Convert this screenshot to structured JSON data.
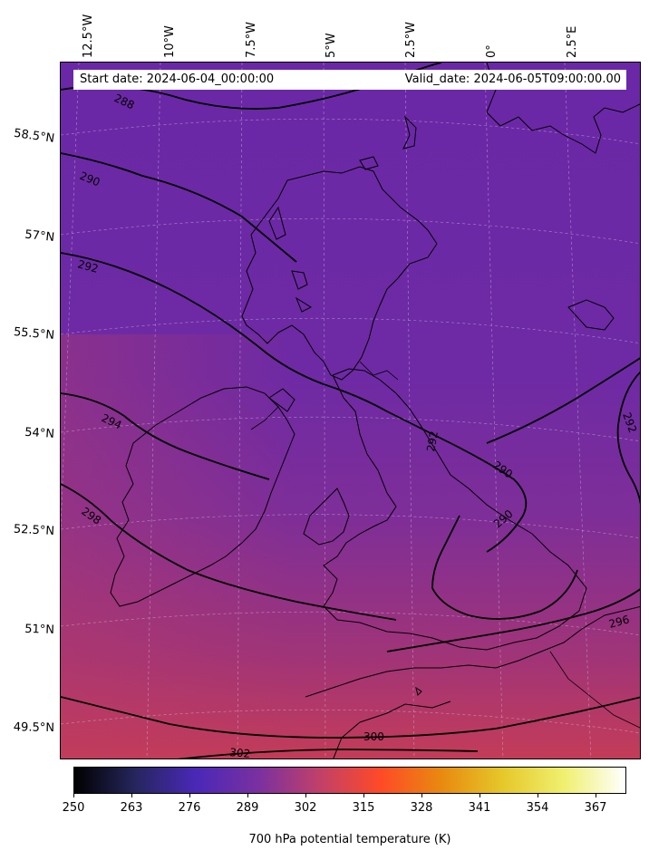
{
  "header": {
    "start_date": "Start date: 2024-06-04_00:00:00",
    "valid_date": "Valid_date: 2024-06-05T09:00:00.00"
  },
  "axes": {
    "longitude_labels": [
      "12.5°W",
      "10°W",
      "7.5°W",
      "5°W",
      "2.5°W",
      "0°",
      "2.5°E"
    ],
    "latitude_labels": [
      "58.5°N",
      "57°N",
      "55.5°N",
      "54°N",
      "52.5°N",
      "51°N",
      "49.5°N"
    ]
  },
  "contours": {
    "labels": [
      "288",
      "290",
      "292",
      "294",
      "298",
      "292",
      "290",
      "290",
      "292",
      "296",
      "300",
      "302"
    ]
  },
  "colorbar": {
    "title": "700 hPa potential temperature (K)",
    "ticks": [
      "250",
      "263",
      "276",
      "289",
      "302",
      "315",
      "328",
      "341",
      "354",
      "367"
    ],
    "min": 250,
    "max": 374,
    "colormap": "CMRmap",
    "colors": [
      "#000000",
      "#26265e",
      "#4a28b8",
      "#7a30a0",
      "#c0406a",
      "#ff4a26",
      "#e88a10",
      "#e6c82a",
      "#f0f070",
      "#ffffff"
    ]
  },
  "map": {
    "field_colors": {
      "north": "#6a28a6",
      "mid": "#7a2e9e",
      "south": "#c03a5a"
    },
    "region": "British Isles and north-west Europe"
  }
}
